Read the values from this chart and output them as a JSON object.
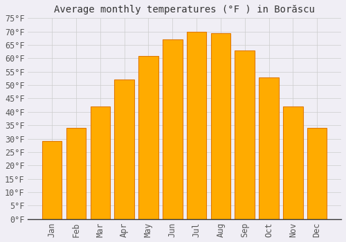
{
  "title": "Average monthly temperatures (°F ) in Borăscu",
  "months": [
    "Jan",
    "Feb",
    "Mar",
    "Apr",
    "May",
    "Jun",
    "Jul",
    "Aug",
    "Sep",
    "Oct",
    "Nov",
    "Dec"
  ],
  "values": [
    29,
    34,
    42,
    52,
    61,
    67,
    70,
    69.5,
    63,
    53,
    42,
    34
  ],
  "bar_color": "#FFAB00",
  "bar_edge_color": "#E07800",
  "background_color": "#F0EEF5",
  "grid_color": "#CCCCCC",
  "text_color": "#555555",
  "ylim": [
    0,
    75
  ],
  "yticks": [
    0,
    5,
    10,
    15,
    20,
    25,
    30,
    35,
    40,
    45,
    50,
    55,
    60,
    65,
    70,
    75
  ],
  "title_fontsize": 10,
  "tick_fontsize": 8.5
}
